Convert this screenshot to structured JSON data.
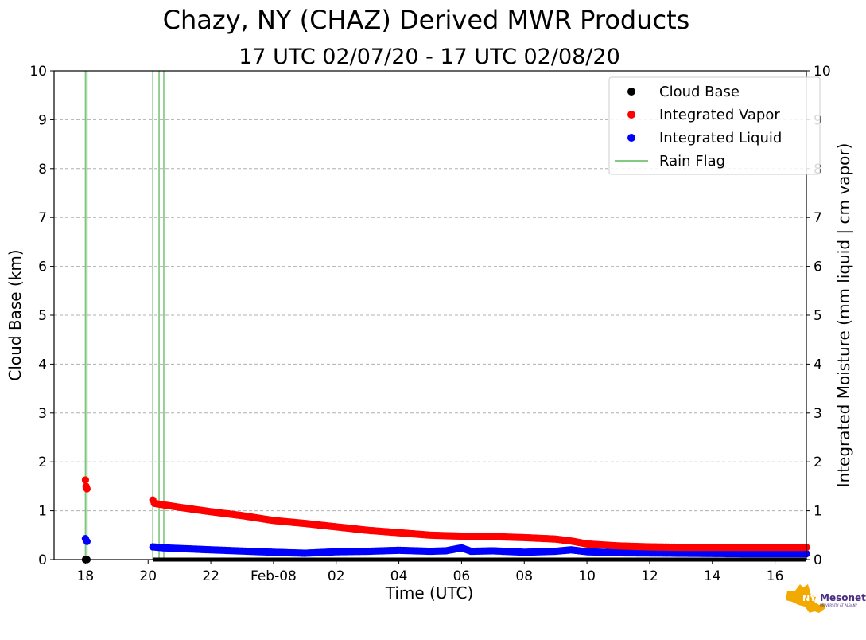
{
  "chart_data": {
    "type": "scatter",
    "title": "Chazy, NY (CHAZ) Derived MWR Products",
    "subtitle": "17 UTC 02/07/20 - 17 UTC 02/08/20",
    "xlabel": "Time (UTC)",
    "ylabel_left": "Cloud Base (km)",
    "ylabel_right": "Integrated Moisture (mm liquid | cm vapor)",
    "x_tick_labels": [
      "18",
      "20",
      "22",
      "Feb-08",
      "02",
      "04",
      "06",
      "08",
      "10",
      "12",
      "14",
      "16"
    ],
    "x_tick_hours": [
      1,
      3,
      5,
      7,
      9,
      11,
      13,
      15,
      17,
      19,
      21,
      23
    ],
    "x_range_hours": [
      0.0,
      24.0
    ],
    "x_unit": "hours since 17 UTC 02/07/20",
    "ylim_left": [
      0,
      10
    ],
    "ylim_right": [
      0,
      10
    ],
    "y_ticks": [
      0,
      1,
      2,
      3,
      4,
      5,
      6,
      7,
      8,
      9,
      10
    ],
    "grid": "horizontal dashed",
    "legend_position": "top-right",
    "legend": [
      "Cloud Base",
      "Integrated Vapor",
      "Integrated Liquid",
      "Rain Flag"
    ],
    "rain_flag_hours": [
      1.0,
      1.05,
      3.15,
      3.35,
      3.5
    ],
    "series": [
      {
        "name": "Integrated Vapor",
        "color": "#ff0000",
        "points": [
          [
            1.0,
            1.63
          ],
          [
            1.02,
            1.5
          ],
          [
            1.05,
            1.45
          ],
          [
            3.15,
            1.22
          ],
          [
            3.2,
            1.15
          ],
          [
            3.5,
            1.12
          ],
          [
            4,
            1.07
          ],
          [
            5,
            0.98
          ],
          [
            6,
            0.9
          ],
          [
            7,
            0.8
          ],
          [
            8,
            0.74
          ],
          [
            9,
            0.67
          ],
          [
            10,
            0.6
          ],
          [
            11,
            0.55
          ],
          [
            12,
            0.5
          ],
          [
            13,
            0.48
          ],
          [
            14,
            0.47
          ],
          [
            15,
            0.45
          ],
          [
            16,
            0.42
          ],
          [
            16.5,
            0.38
          ],
          [
            17,
            0.32
          ],
          [
            18,
            0.28
          ],
          [
            19,
            0.26
          ],
          [
            20,
            0.25
          ],
          [
            21,
            0.25
          ],
          [
            22,
            0.25
          ],
          [
            24,
            0.25
          ]
        ]
      },
      {
        "name": "Integrated Liquid",
        "color": "#0000ff",
        "points": [
          [
            1.0,
            0.43
          ],
          [
            1.05,
            0.37
          ],
          [
            3.15,
            0.26
          ],
          [
            3.5,
            0.24
          ],
          [
            5,
            0.2
          ],
          [
            7,
            0.15
          ],
          [
            8,
            0.13
          ],
          [
            9,
            0.16
          ],
          [
            10,
            0.17
          ],
          [
            11,
            0.19
          ],
          [
            12,
            0.17
          ],
          [
            12.5,
            0.18
          ],
          [
            13,
            0.24
          ],
          [
            13.3,
            0.17
          ],
          [
            14,
            0.18
          ],
          [
            15,
            0.15
          ],
          [
            16,
            0.17
          ],
          [
            16.5,
            0.2
          ],
          [
            17,
            0.16
          ],
          [
            18,
            0.14
          ],
          [
            20,
            0.13
          ],
          [
            22,
            0.12
          ],
          [
            24,
            0.12
          ]
        ]
      },
      {
        "name": "Cloud Base",
        "color": "#000000",
        "points": [
          [
            1.0,
            0.0
          ],
          [
            1.05,
            0.0
          ],
          [
            3.15,
            0.0
          ],
          [
            24,
            0.0
          ]
        ]
      }
    ]
  },
  "logo": {
    "text_nys": "NYS",
    "text_mesonet": "Mesonet",
    "text_sub": "UNIVERSITY AT ALBANY"
  }
}
